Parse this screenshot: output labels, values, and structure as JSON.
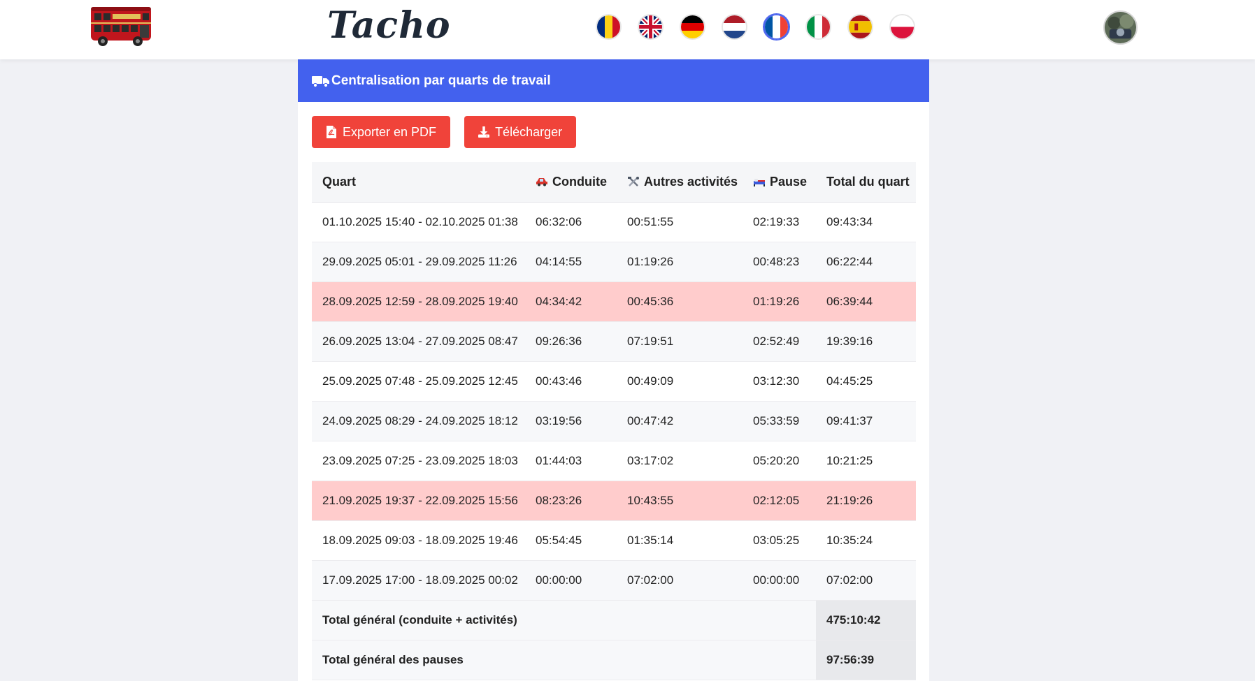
{
  "header": {
    "brand": "Tacho",
    "languages": [
      {
        "code": "ro",
        "name": "romania-flag"
      },
      {
        "code": "en",
        "name": "uk-flag"
      },
      {
        "code": "de",
        "name": "germany-flag"
      },
      {
        "code": "nl",
        "name": "netherlands-flag"
      },
      {
        "code": "fr",
        "name": "france-flag",
        "active": true
      },
      {
        "code": "it",
        "name": "italy-flag"
      },
      {
        "code": "es",
        "name": "spain-flag"
      },
      {
        "code": "pl",
        "name": "poland-flag"
      }
    ]
  },
  "card": {
    "title": "Centralisation par quarts de travail",
    "export_pdf_label": "Exporter en PDF",
    "download_label": "Télécharger"
  },
  "table": {
    "headers": {
      "shift": "Quart",
      "driving": "Conduite",
      "other": "Autres activités",
      "pause": "Pause",
      "total": "Total du quart"
    },
    "rows": [
      {
        "shift": "01.10.2025 15:40 - 02.10.2025 01:38",
        "driving": "06:32:06",
        "other": "00:51:55",
        "pause": "02:19:33",
        "total": "09:43:34",
        "alert": false
      },
      {
        "shift": "29.09.2025 05:01 - 29.09.2025 11:26",
        "driving": "04:14:55",
        "other": "01:19:26",
        "pause": "00:48:23",
        "total": "06:22:44",
        "alert": false
      },
      {
        "shift": "28.09.2025 12:59 - 28.09.2025 19:40",
        "driving": "04:34:42",
        "other": "00:45:36",
        "pause": "01:19:26",
        "total": "06:39:44",
        "alert": true
      },
      {
        "shift": "26.09.2025 13:04 - 27.09.2025 08:47",
        "driving": "09:26:36",
        "other": "07:19:51",
        "pause": "02:52:49",
        "total": "19:39:16",
        "alert": false
      },
      {
        "shift": "25.09.2025 07:48 - 25.09.2025 12:45",
        "driving": "00:43:46",
        "other": "00:49:09",
        "pause": "03:12:30",
        "total": "04:45:25",
        "alert": false
      },
      {
        "shift": "24.09.2025 08:29 - 24.09.2025 18:12",
        "driving": "03:19:56",
        "other": "00:47:42",
        "pause": "05:33:59",
        "total": "09:41:37",
        "alert": false
      },
      {
        "shift": "23.09.2025 07:25 - 23.09.2025 18:03",
        "driving": "01:44:03",
        "other": "03:17:02",
        "pause": "05:20:20",
        "total": "10:21:25",
        "alert": false
      },
      {
        "shift": "21.09.2025 19:37 - 22.09.2025 15:56",
        "driving": "08:23:26",
        "other": "10:43:55",
        "pause": "02:12:05",
        "total": "21:19:26",
        "alert": true
      },
      {
        "shift": "18.09.2025 09:03 - 18.09.2025 19:46",
        "driving": "05:54:45",
        "other": "01:35:14",
        "pause": "03:05:25",
        "total": "10:35:24",
        "alert": false
      },
      {
        "shift": "17.09.2025 17:00 - 18.09.2025 00:02",
        "driving": "00:00:00",
        "other": "07:02:00",
        "pause": "00:00:00",
        "total": "07:02:00",
        "alert": false
      }
    ],
    "footer": [
      {
        "label": "Total général (conduite + activités)",
        "value": "475:10:42"
      },
      {
        "label": "Total général des pauses",
        "value": "97:56:39"
      }
    ]
  },
  "colors": {
    "header_blue": "#4361ee",
    "button_red": "#f0433a",
    "alert_row": "#ffcccc"
  }
}
